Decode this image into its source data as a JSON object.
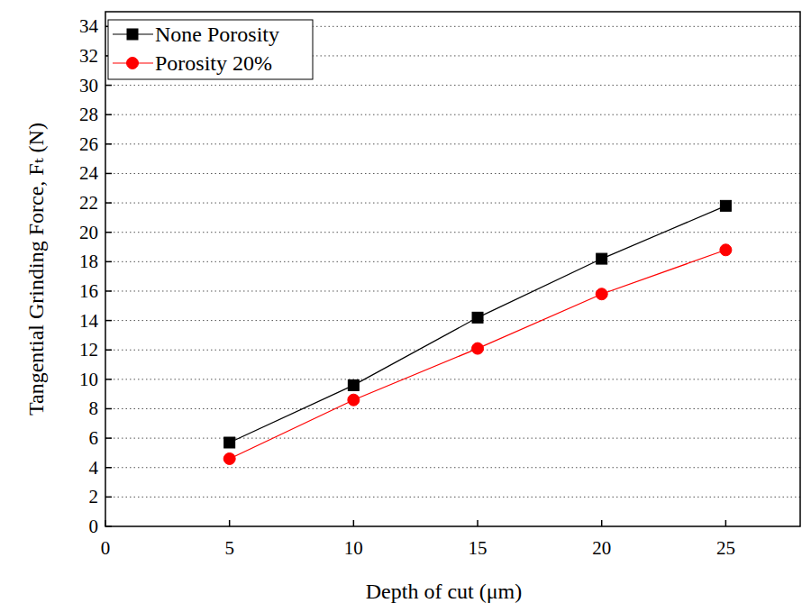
{
  "chart_data": {
    "type": "line",
    "x_label": "Depth of cut (μm)",
    "y_label": "Tangential Grinding Force, Fₜ (N)",
    "x": [
      5,
      10,
      15,
      20,
      25
    ],
    "series": [
      {
        "name": "None Porosity",
        "color": "#000000",
        "marker": "square",
        "line_style": "solid",
        "values": [
          5.7,
          9.6,
          14.2,
          18.2,
          21.8
        ]
      },
      {
        "name": "Porosity 20%",
        "color": "#ff0000",
        "marker": "circle",
        "line_style": "solid",
        "values": [
          4.6,
          8.6,
          12.1,
          15.8,
          18.8
        ]
      }
    ],
    "xlim": [
      0,
      28
    ],
    "xticks": [
      0,
      5,
      10,
      15,
      20,
      25
    ],
    "ylim": [
      0,
      35
    ],
    "yticks": [
      0,
      2,
      4,
      6,
      8,
      10,
      12,
      14,
      16,
      18,
      20,
      22,
      24,
      26,
      28,
      30,
      32,
      34
    ],
    "grid": true,
    "legend": "upper left"
  }
}
